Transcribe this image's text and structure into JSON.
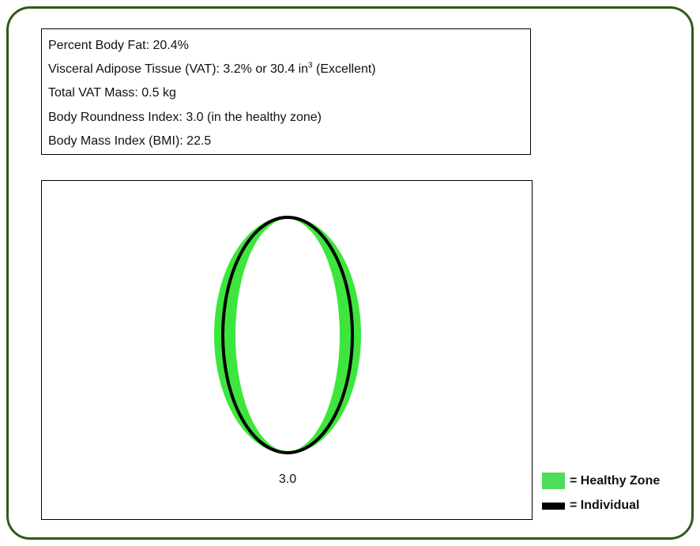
{
  "metrics": [
    "Percent Body Fat: 20.4%",
    {
      "before": "Visceral Adipose Tissue (VAT): 3.2% or 30.4 in",
      "sup": "3",
      "after": " (Excellent)"
    },
    "Total VAT Mass: 0.5 kg",
    "Body Roundness Index: 3.0 (in the healthy zone)",
    "Body Mass Index (BMI): 22.5"
  ],
  "diagram": {
    "label": "3.0"
  },
  "legend": {
    "healthy": "= Healthy Zone",
    "individual": "= Individual"
  }
}
